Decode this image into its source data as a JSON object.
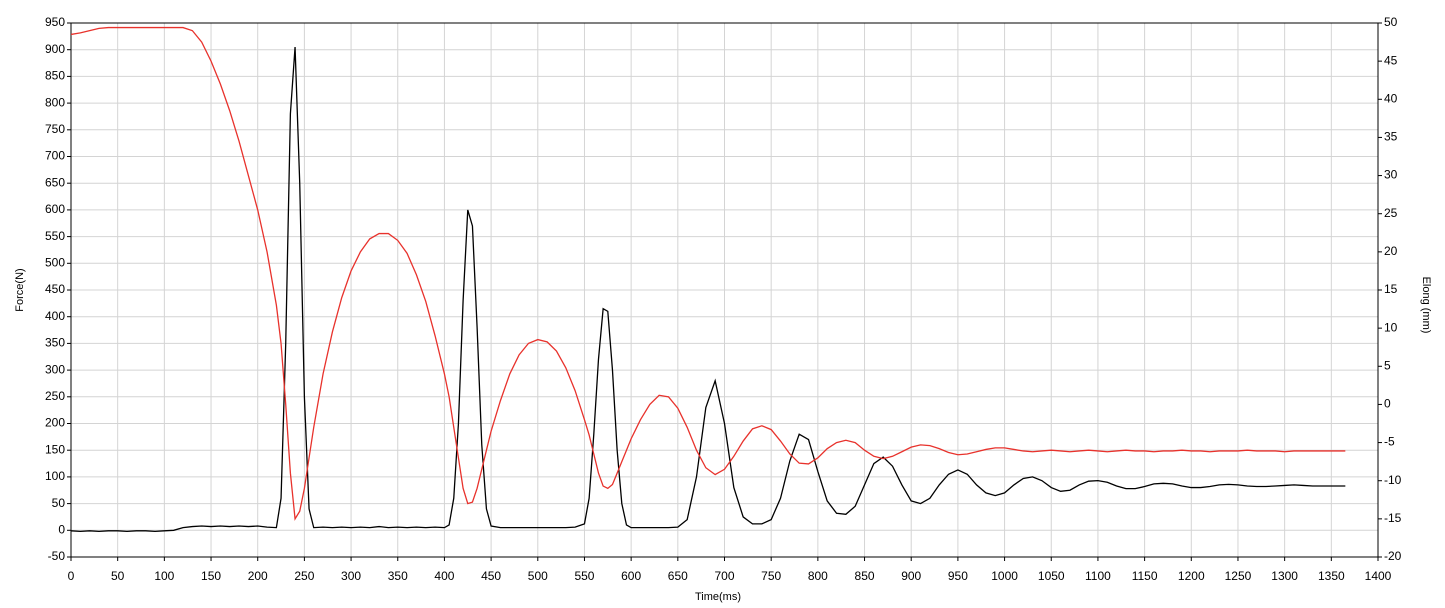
{
  "chart_data": {
    "type": "line",
    "x_label": "Time(ms)",
    "y_label": "Force(N)",
    "y2_label": "Elong (mm)",
    "x": [
      0,
      10,
      20,
      30,
      40,
      50,
      60,
      70,
      80,
      90,
      100,
      110,
      120,
      130,
      140,
      150,
      160,
      170,
      180,
      190,
      200,
      210,
      220,
      225,
      230,
      235,
      240,
      245,
      250,
      255,
      260,
      270,
      280,
      290,
      300,
      310,
      320,
      330,
      340,
      350,
      360,
      370,
      380,
      390,
      400,
      405,
      410,
      415,
      420,
      425,
      430,
      435,
      440,
      445,
      450,
      460,
      470,
      480,
      490,
      500,
      510,
      520,
      530,
      540,
      550,
      555,
      560,
      565,
      570,
      575,
      580,
      585,
      590,
      595,
      600,
      610,
      620,
      630,
      640,
      650,
      660,
      670,
      680,
      690,
      700,
      710,
      720,
      730,
      740,
      750,
      760,
      770,
      780,
      790,
      800,
      810,
      820,
      830,
      840,
      850,
      860,
      870,
      880,
      890,
      900,
      910,
      920,
      930,
      940,
      950,
      960,
      970,
      980,
      990,
      1000,
      1010,
      1020,
      1030,
      1040,
      1050,
      1060,
      1070,
      1080,
      1090,
      1100,
      1110,
      1120,
      1130,
      1140,
      1150,
      1160,
      1170,
      1180,
      1190,
      1200,
      1210,
      1220,
      1230,
      1240,
      1250,
      1260,
      1270,
      1280,
      1290,
      1300,
      1310,
      1320,
      1330,
      1340,
      1350,
      1360,
      1365
    ],
    "series": [
      {
        "color": "#000000",
        "values": [
          -1,
          -2,
          -1,
          -2,
          -1,
          -1,
          -2,
          -1,
          -1,
          -2,
          -1,
          0,
          5,
          7,
          8,
          7,
          8,
          7,
          8,
          7,
          8,
          6,
          5,
          60,
          350,
          780,
          905,
          650,
          250,
          40,
          5,
          6,
          5,
          6,
          5,
          6,
          5,
          7,
          5,
          6,
          5,
          6,
          5,
          6,
          5,
          10,
          60,
          200,
          430,
          600,
          570,
          380,
          160,
          40,
          8,
          5,
          5,
          5,
          5,
          5,
          5,
          5,
          5,
          6,
          12,
          60,
          180,
          320,
          415,
          410,
          300,
          150,
          50,
          10,
          5,
          5,
          5,
          5,
          5,
          6,
          20,
          100,
          230,
          280,
          200,
          80,
          25,
          12,
          12,
          20,
          60,
          130,
          180,
          170,
          110,
          55,
          32,
          30,
          45,
          85,
          125,
          137,
          120,
          85,
          55,
          50,
          60,
          85,
          105,
          113,
          105,
          85,
          70,
          65,
          70,
          85,
          97,
          100,
          93,
          80,
          73,
          75,
          85,
          92,
          93,
          90,
          83,
          78,
          78,
          82,
          87,
          88,
          87,
          83,
          80,
          80,
          82,
          85,
          86,
          85,
          83,
          82,
          82,
          83,
          84,
          85,
          84,
          83,
          83,
          83,
          83,
          83
        ]
      },
      {
        "color": "#e8322c",
        "axis": "y2",
        "values": [
          48.5,
          48.7,
          49,
          49.3,
          49.4,
          49.4,
          49.4,
          49.4,
          49.4,
          49.4,
          49.4,
          49.4,
          49.4,
          49,
          47.5,
          45,
          42,
          38.5,
          34.5,
          30,
          25.5,
          20,
          13,
          8,
          0,
          -9,
          -15,
          -14,
          -11,
          -7,
          -3,
          4,
          9.5,
          14,
          17.5,
          20,
          21.7,
          22.4,
          22.4,
          21.5,
          19.8,
          17,
          13.5,
          9,
          4,
          1,
          -3,
          -7,
          -11,
          -13,
          -12.8,
          -11,
          -8.5,
          -6,
          -3.5,
          0.5,
          4,
          6.5,
          8,
          8.5,
          8.2,
          7,
          4.8,
          1.8,
          -2,
          -4,
          -6.5,
          -9,
          -10.7,
          -11,
          -10.5,
          -9,
          -7.5,
          -6,
          -4.5,
          -2,
          0,
          1.2,
          1,
          -0.5,
          -3,
          -6,
          -8.3,
          -9.2,
          -8.5,
          -6.8,
          -4.8,
          -3.2,
          -2.8,
          -3.3,
          -4.8,
          -6.5,
          -7.7,
          -7.8,
          -7,
          -5.8,
          -5,
          -4.7,
          -5,
          -6,
          -6.8,
          -7.1,
          -6.8,
          -6.2,
          -5.6,
          -5.3,
          -5.4,
          -5.8,
          -6.3,
          -6.6,
          -6.5,
          -6.2,
          -5.9,
          -5.7,
          -5.7,
          -5.9,
          -6.1,
          -6.2,
          -6.1,
          -6,
          -6.1,
          -6.2,
          -6.1,
          -6,
          -6.1,
          -6.2,
          -6.1,
          -6,
          -6.1,
          -6.1,
          -6.2,
          -6.1,
          -6.1,
          -6,
          -6.1,
          -6.1,
          -6.2,
          -6.1,
          -6.1,
          -6.1,
          -6,
          -6.1,
          -6.1,
          -6.1,
          -6.2,
          -6.1,
          -6.1,
          -6.1,
          -6.1,
          -6.1,
          -6.1,
          -6.1
        ]
      }
    ],
    "xlim": [
      0,
      1400
    ],
    "xticks": [
      0,
      50,
      100,
      150,
      200,
      250,
      300,
      350,
      400,
      450,
      500,
      550,
      600,
      650,
      700,
      750,
      800,
      850,
      900,
      950,
      1000,
      1050,
      1100,
      1150,
      1200,
      1250,
      1300,
      1350,
      1400
    ],
    "ylim": [
      -50,
      950
    ],
    "yticks": [
      -50,
      0,
      50,
      100,
      150,
      200,
      250,
      300,
      350,
      400,
      450,
      500,
      550,
      600,
      650,
      700,
      750,
      800,
      850,
      900,
      950
    ],
    "y2lim": [
      -20,
      50
    ],
    "y2ticks": [
      -20,
      -15,
      -10,
      -5,
      0,
      5,
      10,
      15,
      20,
      25,
      30,
      35,
      40,
      45,
      50
    ],
    "grid": true
  }
}
